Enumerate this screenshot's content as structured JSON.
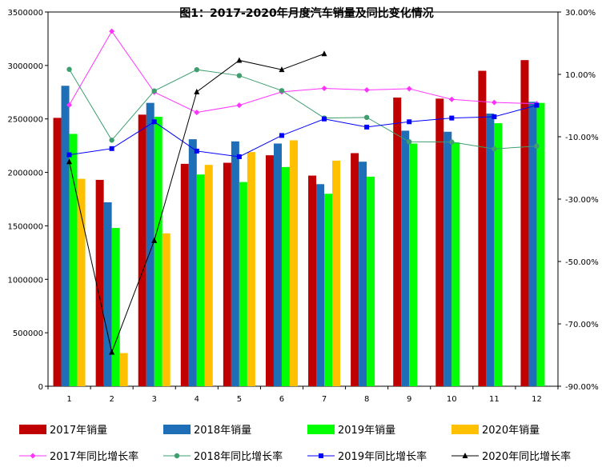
{
  "chart_data": {
    "type": "bar+line",
    "title": "图1：2017-2020年月度汽车销量及同比变化情况",
    "categories": [
      "1",
      "2",
      "3",
      "4",
      "5",
      "6",
      "7",
      "8",
      "9",
      "10",
      "11",
      "12"
    ],
    "y_left": {
      "min": 0,
      "max": 3500000,
      "ticks": [
        "0",
        "500000",
        "1000000",
        "1500000",
        "2000000",
        "2500000",
        "3000000",
        "3500000"
      ],
      "tick_values": [
        0,
        500000,
        1000000,
        1500000,
        2000000,
        2500000,
        3000000,
        3500000
      ]
    },
    "y_right": {
      "min": -90,
      "max": 30,
      "ticks": [
        "-90.00%",
        "-70.00%",
        "-50.00%",
        "-30.00%",
        "-10.00%",
        "10.00%",
        "30.00%"
      ],
      "tick_values": [
        -90,
        -70,
        -50,
        -30,
        -10,
        10,
        30
      ]
    },
    "bar_series": [
      {
        "name": "2017年销量",
        "color": "#C00000",
        "values": [
          2510000,
          1930000,
          2540000,
          2080000,
          2090000,
          2160000,
          1970000,
          2180000,
          2700000,
          2690000,
          2950000,
          3050000
        ]
      },
      {
        "name": "2018年销量",
        "color": "#1F6FB8",
        "values": [
          2810000,
          1720000,
          2650000,
          2310000,
          2290000,
          2270000,
          1890000,
          2100000,
          2390000,
          2380000,
          2550000,
          2660000
        ]
      },
      {
        "name": "2019年销量",
        "color": "#00FF00",
        "values": [
          2360000,
          1480000,
          2520000,
          1980000,
          1910000,
          2050000,
          1800000,
          1960000,
          2270000,
          2280000,
          2460000,
          2650000
        ]
      },
      {
        "name": "2020年销量",
        "color": "#FFC000",
        "values": [
          1940000,
          310000,
          1430000,
          2070000,
          2190000,
          2300000,
          2110000,
          null,
          null,
          null,
          null,
          null
        ]
      }
    ],
    "line_series": [
      {
        "name": "2017年同比增长率",
        "color": "#FF33FF",
        "marker": "diamond",
        "values": [
          0.2,
          23.8,
          4.3,
          -2.2,
          0.1,
          4.4,
          5.5,
          5.0,
          5.4,
          2.0,
          1.0,
          0.6
        ]
      },
      {
        "name": "2018年同比增长率",
        "color": "#3E9E6E",
        "marker": "circle",
        "values": [
          11.6,
          -11.1,
          4.7,
          11.5,
          9.6,
          4.8,
          -4.0,
          -3.8,
          -11.6,
          -11.7,
          -13.9,
          -13.0
        ]
      },
      {
        "name": "2019年同比增长率",
        "color": "#0000FF",
        "marker": "square",
        "values": [
          -15.8,
          -13.8,
          -5.2,
          -14.6,
          -16.4,
          -9.6,
          -4.3,
          -6.9,
          -5.2,
          -4.0,
          -3.6,
          0.1
        ]
      },
      {
        "name": "2020年同比增长率",
        "color": "#000000",
        "marker": "triangle",
        "values": [
          -18.0,
          -79.1,
          -43.3,
          4.4,
          14.5,
          11.5,
          16.6,
          null,
          null,
          null,
          null,
          null
        ]
      }
    ],
    "legend": {
      "position": "bottom"
    }
  }
}
